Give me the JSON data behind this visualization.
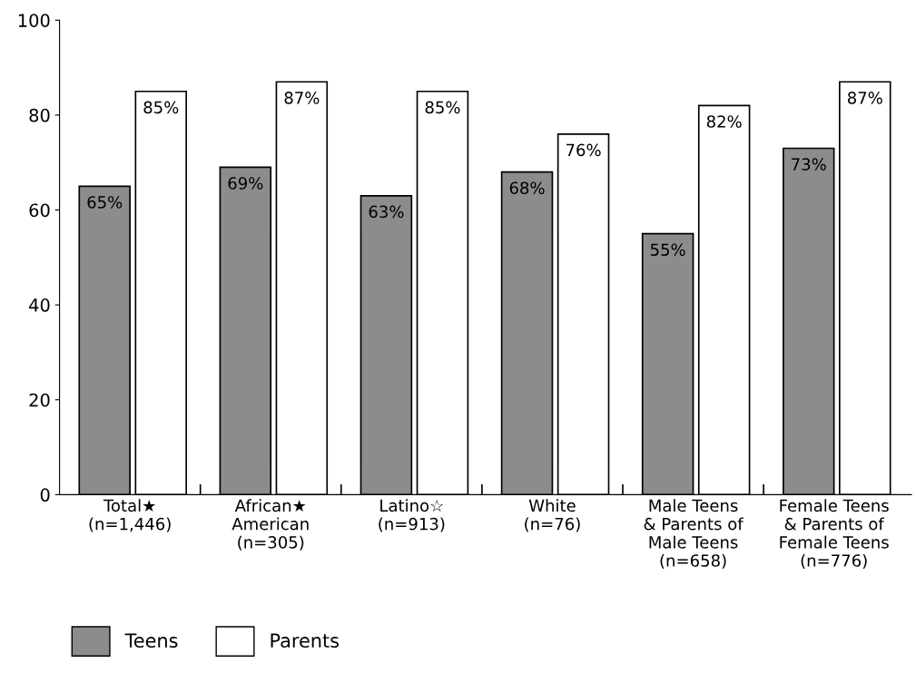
{
  "chart_data": {
    "type": "bar",
    "categories": [
      "Total★\n(n=1,446)",
      "African★\nAmerican\n(n=305)",
      "Latino☆\n(n=913)",
      "White\n(n=76)",
      "Male Teens\n& Parents of\nMale Teens\n(n=658)",
      "Female Teens\n& Parents of\nFemale Teens\n(n=776)"
    ],
    "series": [
      {
        "name": "Teens",
        "color": "#8c8c8c",
        "values": [
          65,
          69,
          63,
          68,
          55,
          73
        ],
        "value_labels": [
          "65%",
          "69%",
          "63%",
          "68%",
          "55%",
          "73%"
        ]
      },
      {
        "name": "Parents",
        "color": "#ffffff",
        "values": [
          85,
          87,
          85,
          76,
          82,
          87
        ],
        "value_labels": [
          "85%",
          "87%",
          "85%",
          "76%",
          "82%",
          "87%"
        ]
      }
    ],
    "ylim": [
      0,
      100
    ],
    "yticks": [
      0,
      20,
      40,
      60,
      80,
      100
    ],
    "grid": false,
    "legend": "bottom left"
  }
}
